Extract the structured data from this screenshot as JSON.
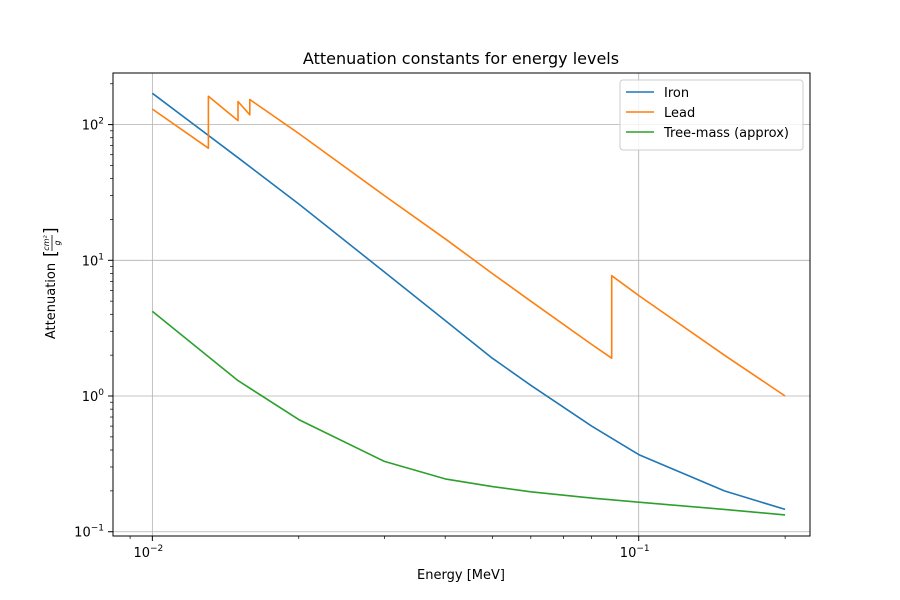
{
  "chart_data": {
    "type": "line",
    "title": "Attenuation constants for energy levels",
    "xlabel": "Energy [MeV]",
    "ylabel": {
      "prefix": "Attenuation",
      "unit_numerator": "cm²",
      "unit_denominator": "g"
    },
    "xscale": "log",
    "yscale": "log",
    "xlim": [
      0.0083,
      0.225
    ],
    "ylim": [
      0.093,
      240
    ],
    "grid": true,
    "legend_position": "upper right",
    "x_ticks": [
      {
        "value": 0.01,
        "label": "10",
        "exponent": "−2"
      },
      {
        "value": 0.1,
        "label": "10",
        "exponent": "−1"
      }
    ],
    "y_ticks": [
      {
        "value": 0.1,
        "label": "10",
        "exponent": "−1"
      },
      {
        "value": 1,
        "label": "10",
        "exponent": "0"
      },
      {
        "value": 10,
        "label": "10",
        "exponent": "1"
      },
      {
        "value": 100,
        "label": "10",
        "exponent": "2"
      }
    ],
    "series": [
      {
        "name": "Iron",
        "color": "#1f77b4",
        "x": [
          0.01,
          0.015,
          0.02,
          0.03,
          0.04,
          0.05,
          0.06,
          0.08,
          0.1,
          0.15,
          0.2
        ],
        "y": [
          170,
          57,
          26,
          8.2,
          3.6,
          1.9,
          1.2,
          0.6,
          0.37,
          0.2,
          0.146
        ]
      },
      {
        "name": "Lead",
        "color": "#ff7f0e",
        "x": [
          0.01,
          0.01304,
          0.01304,
          0.015,
          0.015,
          0.01586,
          0.01586,
          0.02,
          0.03,
          0.04,
          0.05,
          0.06,
          0.08,
          0.088,
          0.088,
          0.1,
          0.15,
          0.2
        ],
        "y": [
          130,
          67,
          162,
          107,
          148,
          118,
          153,
          86,
          30,
          14.4,
          8.0,
          5.0,
          2.4,
          1.9,
          7.7,
          5.5,
          2.0,
          1.0
        ]
      },
      {
        "name": "Tree-mass (approx)",
        "color": "#2ca02c",
        "x": [
          0.01,
          0.015,
          0.02,
          0.03,
          0.04,
          0.05,
          0.06,
          0.08,
          0.1,
          0.15,
          0.2
        ],
        "y": [
          4.2,
          1.3,
          0.67,
          0.33,
          0.245,
          0.215,
          0.197,
          0.177,
          0.165,
          0.146,
          0.133
        ]
      }
    ]
  }
}
